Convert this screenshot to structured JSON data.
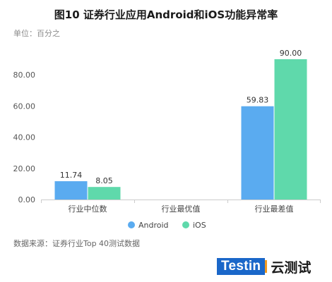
{
  "title": "图10 证券行业应用Android和iOS功能异常率",
  "unit_label": "单位：百分之",
  "source": "数据来源：证券行业Top 40测试数据",
  "brand": {
    "logo_text": "Testin",
    "name": "云测试"
  },
  "colors": {
    "android": "#5aabf0",
    "ios": "#5fd9ab"
  },
  "chart_data": {
    "type": "bar",
    "categories": [
      "行业中位数",
      "行业最优值",
      "行业最差值"
    ],
    "series": [
      {
        "name": "Android",
        "values": [
          11.74,
          null,
          59.83
        ]
      },
      {
        "name": "iOS",
        "values": [
          8.05,
          null,
          90.0
        ]
      }
    ],
    "data_labels": [
      [
        "11.74",
        "",
        "59.83"
      ],
      [
        "8.05",
        "",
        "90.00"
      ]
    ],
    "ylim": [
      0,
      90
    ],
    "yticks": [
      0,
      20,
      40,
      60,
      80
    ],
    "ytick_labels": [
      "0.00",
      "20.00",
      "40.00",
      "60.00",
      "80.00"
    ],
    "grid": false,
    "legend": "bottom-center"
  }
}
